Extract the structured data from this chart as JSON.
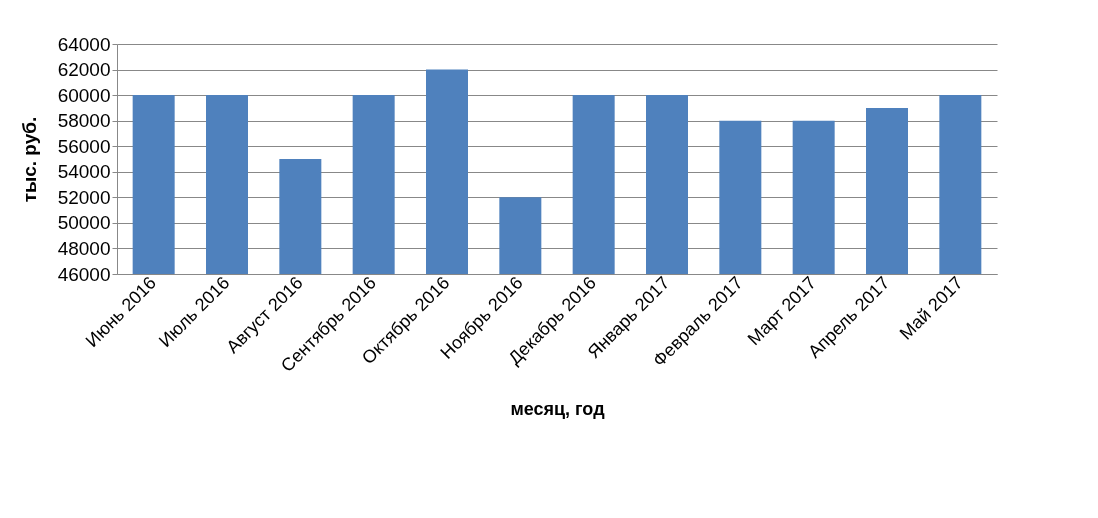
{
  "chart_data": {
    "type": "bar",
    "xlabel": "месяц, год",
    "ylabel": "тыс. руб.",
    "categories": [
      "Июнь 2016",
      "Июль 2016",
      "Август 2016",
      "Сентябрь 2016",
      "Октябрь 2016",
      "Ноябрь 2016",
      "Декабрь 2016",
      "Январь 2017",
      "Февраль 2017",
      "Март 2017",
      "Апрель 2017",
      "Май 2017"
    ],
    "values": [
      60000,
      60000,
      55000,
      60000,
      62000,
      52000,
      60000,
      60000,
      58000,
      58000,
      59000,
      60000
    ],
    "color": "#4f81bd",
    "ylim": [
      46000,
      64000
    ],
    "yticks": [
      46000,
      48000,
      50000,
      52000,
      54000,
      56000,
      58000,
      60000,
      62000,
      64000
    ],
    "grid": "y"
  }
}
